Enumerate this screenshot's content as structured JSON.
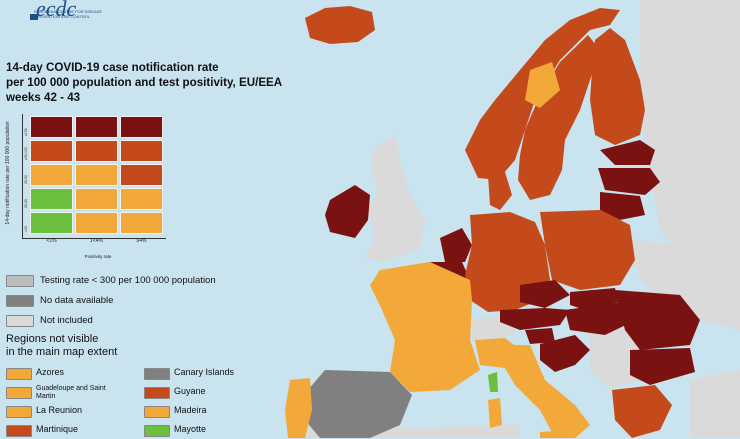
{
  "logo": {
    "text": "ecdc",
    "subtitle": "EUROPEAN CENTRE FOR DISEASE PREVENTION AND CONTROL"
  },
  "title": {
    "line1": "14-day COVID-19 case notification rate",
    "line2": "per 100 000 population and test positivity, EU/EEA",
    "line3": "weeks 42 - 43"
  },
  "colors": {
    "green": "#6cbf3f",
    "orange": "#f2a93a",
    "red": "#c44a1c",
    "darkred": "#7a1212",
    "grey_testing": "#bdbdbd",
    "grey_nodata": "#808080",
    "grey_notincluded": "#dadada",
    "sea": "#c9e3ef"
  },
  "matrix": {
    "y_axis_title": "14-day notification rate per 100 000 population",
    "y_ticks": [
      "≥150",
      "≥50-150",
      "25-50",
      "20-25",
      "<20"
    ],
    "x_axis_title": "Positivity rate",
    "x_ticks": [
      "<1%",
      "1<4%",
      "≥4%"
    ],
    "rows": [
      [
        "darkred",
        "darkred",
        "darkred"
      ],
      [
        "red",
        "red",
        "red"
      ],
      [
        "orange",
        "orange",
        "red"
      ],
      [
        "green",
        "orange",
        "orange"
      ],
      [
        "green",
        "orange",
        "orange"
      ]
    ]
  },
  "legend": [
    {
      "label": "Testing rate < 300 per 100 000 population",
      "color": "grey_testing"
    },
    {
      "label": "No data available",
      "color": "grey_nodata"
    },
    {
      "label": "Not included",
      "color": "grey_notincluded"
    }
  ],
  "regions": {
    "title_line1": "Regions not visible",
    "title_line2": "in the main map extent",
    "left": [
      {
        "label": "Azores",
        "color": "orange"
      },
      {
        "label": "Guadeloupe and Saint Martin",
        "color": "orange"
      },
      {
        "label": "La Reunion",
        "color": "orange"
      },
      {
        "label": "Martinique",
        "color": "red"
      }
    ],
    "right": [
      {
        "label": "Canary Islands",
        "color": "grey_nodata"
      },
      {
        "label": "Guyane",
        "color": "red"
      },
      {
        "label": "Madeira",
        "color": "orange"
      },
      {
        "label": "Mayotte",
        "color": "green"
      }
    ]
  },
  "map_regions": [
    {
      "name": "iceland",
      "color": "red"
    },
    {
      "name": "norway",
      "color": "red"
    },
    {
      "name": "sweden",
      "color": "red"
    },
    {
      "name": "finland",
      "color": "red"
    },
    {
      "name": "estonia",
      "color": "darkred"
    },
    {
      "name": "latvia",
      "color": "darkred"
    },
    {
      "name": "lithuania",
      "color": "darkred"
    },
    {
      "name": "ireland",
      "color": "darkred"
    },
    {
      "name": "united-kingdom",
      "color": "grey_notincluded"
    },
    {
      "name": "denmark",
      "color": "red"
    },
    {
      "name": "netherlands",
      "color": "darkred"
    },
    {
      "name": "belgium",
      "color": "darkred"
    },
    {
      "name": "germany",
      "color": "red"
    },
    {
      "name": "poland",
      "color": "red"
    },
    {
      "name": "czechia",
      "color": "darkred"
    },
    {
      "name": "slovakia",
      "color": "darkred"
    },
    {
      "name": "austria",
      "color": "darkred"
    },
    {
      "name": "hungary",
      "color": "darkred"
    },
    {
      "name": "slovenia",
      "color": "darkred"
    },
    {
      "name": "croatia",
      "color": "darkred"
    },
    {
      "name": "romania",
      "color": "darkred"
    },
    {
      "name": "bulgaria",
      "color": "darkred"
    },
    {
      "name": "greece",
      "color": "red"
    },
    {
      "name": "france",
      "color": "orange"
    },
    {
      "name": "spain",
      "color": "grey_nodata"
    },
    {
      "name": "portugal",
      "color": "orange"
    },
    {
      "name": "italy-north",
      "color": "orange"
    },
    {
      "name": "italy-south",
      "color": "orange"
    },
    {
      "name": "switzerland",
      "color": "grey_notincluded"
    },
    {
      "name": "belarus",
      "color": "grey_notincluded"
    },
    {
      "name": "ukraine",
      "color": "grey_notincluded"
    }
  ]
}
